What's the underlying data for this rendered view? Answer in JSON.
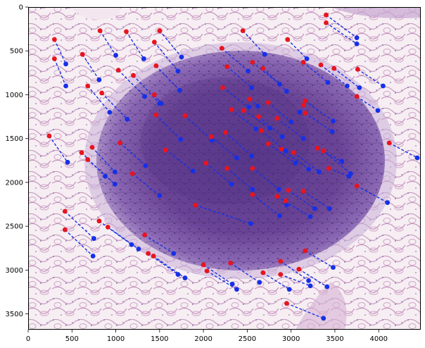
{
  "figure": {
    "x_ticks": [
      "0",
      "500",
      "1000",
      "1500",
      "2000",
      "2500",
      "3000",
      "3500",
      "4000"
    ],
    "y_ticks": [
      "0",
      "500",
      "1000",
      "1500",
      "2000",
      "2500",
      "3000",
      "3500"
    ]
  },
  "chart_data": {
    "type": "scatter",
    "title": "",
    "xlabel": "",
    "ylabel": "",
    "xlim": [
      0,
      4480
    ],
    "ylim": [
      3680,
      0
    ],
    "grid": false,
    "background": "histology image (H&E stained lymphoid nodule)",
    "colors": {
      "source": "#e8141e",
      "target": "#1530e6",
      "link": "#1530e6"
    },
    "series": [
      {
        "pairs": [
          [
            [
              300,
              370
            ],
            [
              430,
              650
            ]
          ],
          [
            [
              300,
              590
            ],
            [
              430,
              900
            ]
          ],
          [
            [
              820,
              270
            ],
            [
              1000,
              550
            ]
          ],
          [
            [
              1120,
              280
            ],
            [
              1320,
              590
            ]
          ],
          [
            [
              1500,
              270
            ],
            [
              1750,
              570
            ]
          ],
          [
            [
              1440,
              400
            ],
            [
              1710,
              730
            ]
          ],
          [
            [
              2450,
              270
            ],
            [
              2700,
              540
            ]
          ],
          [
            [
              2960,
              370
            ],
            [
              3180,
              590
            ]
          ],
          [
            [
              3400,
              90
            ],
            [
              3750,
              350
            ]
          ],
          [
            [
              3400,
              180
            ],
            [
              3750,
              420
            ]
          ],
          [
            [
              620,
              540
            ],
            [
              810,
              830
            ]
          ],
          [
            [
              1030,
              720
            ],
            [
              1330,
              1020
            ]
          ],
          [
            [
              1200,
              780
            ],
            [
              1500,
              1100
            ]
          ],
          [
            [
              1460,
              670
            ],
            [
              1730,
              950
            ]
          ],
          [
            [
              2210,
              470
            ],
            [
              2510,
              730
            ]
          ],
          [
            [
              2560,
              630
            ],
            [
              2870,
              880
            ]
          ],
          [
            [
              3140,
              630
            ],
            [
              3420,
              860
            ]
          ],
          [
            [
              2270,
              680
            ],
            [
              2550,
              920
            ]
          ],
          [
            [
              2680,
              700
            ],
            [
              2950,
              960
            ]
          ],
          [
            [
              3340,
              660
            ],
            [
              3640,
              900
            ]
          ],
          [
            [
              3490,
              700
            ],
            [
              3780,
              920
            ]
          ],
          [
            [
              3760,
              710
            ],
            [
              4050,
              900
            ]
          ],
          [
            [
              680,
              900
            ],
            [
              930,
              1200
            ]
          ],
          [
            [
              840,
              980
            ],
            [
              1130,
              1280
            ]
          ],
          [
            [
              1440,
              1000
            ],
            [
              1520,
              1100
            ]
          ],
          [
            [
              2220,
              920
            ],
            [
              2520,
              1140
            ]
          ],
          [
            [
              2530,
              1050
            ],
            [
              2620,
              1130
            ]
          ],
          [
            [
              2320,
              1170
            ],
            [
              2600,
              1390
            ]
          ],
          [
            [
              2460,
              1180
            ],
            [
              2760,
              1380
            ]
          ],
          [
            [
              2740,
              1090
            ],
            [
              3000,
              1310
            ]
          ],
          [
            [
              3160,
              1070
            ],
            [
              3480,
              1300
            ]
          ],
          [
            [
              3750,
              1020
            ],
            [
              3990,
              1180
            ]
          ],
          [
            [
              1460,
              1230
            ],
            [
              1740,
              1510
            ]
          ],
          [
            [
              1790,
              1240
            ],
            [
              2100,
              1520
            ]
          ],
          [
            [
              2090,
              1480
            ],
            [
              2380,
              1720
            ]
          ],
          [
            [
              2250,
              1430
            ],
            [
              2550,
              1700
            ]
          ],
          [
            [
              2660,
              1410
            ],
            [
              2940,
              1640
            ]
          ],
          [
            [
              2630,
              1250
            ],
            [
              2900,
              1480
            ]
          ],
          [
            [
              2840,
              1270
            ],
            [
              3140,
              1500
            ]
          ],
          [
            [
              3160,
              1210
            ],
            [
              3470,
              1420
            ]
          ],
          [
            [
              3140,
              1120
            ],
            [
              3100,
              1200
            ]
          ],
          [
            [
              240,
              1470
            ],
            [
              450,
              1770
            ]
          ],
          [
            [
              730,
              1600
            ],
            [
              990,
              1880
            ]
          ],
          [
            [
              610,
              1660
            ],
            [
              880,
              1930
            ]
          ],
          [
            [
              680,
              1740
            ],
            [
              990,
              2020
            ]
          ],
          [
            [
              1050,
              1550
            ],
            [
              1340,
              1810
            ]
          ],
          [
            [
              1570,
              1630
            ],
            [
              1880,
              1870
            ]
          ],
          [
            [
              2030,
              1780
            ],
            [
              2320,
              2020
            ]
          ],
          [
            [
              2270,
              1840
            ],
            [
              2560,
              2080
            ]
          ],
          [
            [
              2560,
              1840
            ],
            [
              2860,
              2080
            ]
          ],
          [
            [
              2740,
              1560
            ],
            [
              3050,
              1780
            ]
          ],
          [
            [
              2890,
              1620
            ],
            [
              3200,
              1850
            ]
          ],
          [
            [
              3030,
              1660
            ],
            [
              3320,
              1880
            ]
          ],
          [
            [
              3300,
              1610
            ],
            [
              3580,
              1760
            ]
          ],
          [
            [
              3370,
              1640
            ],
            [
              3680,
              1900
            ]
          ],
          [
            [
              3430,
              1840
            ],
            [
              3660,
              1930
            ]
          ],
          [
            [
              4120,
              1550
            ],
            [
              4440,
              1720
            ]
          ],
          [
            [
              1190,
              1900
            ],
            [
              1500,
              2150
            ]
          ],
          [
            [
              2970,
              2090
            ],
            [
              3270,
              2300
            ]
          ],
          [
            [
              3140,
              2100
            ],
            [
              3440,
              2300
            ]
          ],
          [
            [
              3750,
              2040
            ],
            [
              4100,
              2230
            ]
          ],
          [
            [
              2560,
              2140
            ],
            [
              2870,
              2380
            ]
          ],
          [
            [
              2840,
              2160
            ],
            [
              3220,
              2390
            ]
          ],
          [
            [
              2940,
              2210
            ],
            [
              2950,
              2260
            ]
          ],
          [
            [
              1910,
              2260
            ],
            [
              2540,
              2470
            ]
          ],
          [
            [
              420,
              2330
            ],
            [
              750,
              2640
            ]
          ],
          [
            [
              420,
              2540
            ],
            [
              740,
              2840
            ]
          ],
          [
            [
              810,
              2440
            ],
            [
              1180,
              2710
            ]
          ],
          [
            [
              910,
              2510
            ],
            [
              1260,
              2760
            ]
          ],
          [
            [
              1330,
              2600
            ],
            [
              1660,
              2810
            ]
          ],
          [
            [
              1370,
              2810
            ],
            [
              1710,
              3050
            ]
          ],
          [
            [
              1430,
              2840
            ],
            [
              1790,
              3090
            ]
          ],
          [
            [
              2000,
              2940
            ],
            [
              2330,
              3160
            ]
          ],
          [
            [
              2040,
              3010
            ],
            [
              2380,
              3220
            ]
          ],
          [
            [
              2310,
              2920
            ],
            [
              2640,
              3140
            ]
          ],
          [
            [
              2680,
              3030
            ],
            [
              2980,
              3220
            ]
          ],
          [
            [
              2880,
              2900
            ],
            [
              3200,
              3120
            ]
          ],
          [
            [
              2880,
              3050
            ],
            [
              3220,
              3180
            ]
          ],
          [
            [
              3090,
              2990
            ],
            [
              3410,
              3190
            ]
          ],
          [
            [
              3160,
              2780
            ],
            [
              3480,
              2970
            ]
          ],
          [
            [
              2950,
              3380
            ],
            [
              3370,
              3550
            ]
          ]
        ]
      }
    ]
  }
}
